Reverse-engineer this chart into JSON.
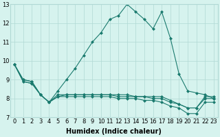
{
  "xlabel": "Humidex (Indice chaleur)",
  "bg_color": "#d6f3ee",
  "grid_color": "#b0d8d4",
  "line_color": "#1a7a6e",
  "marker": "D",
  "marker_size": 2,
  "xmin": -0.5,
  "xmax": 23.5,
  "ymin": 7,
  "ymax": 13,
  "series1": [
    9.8,
    9.0,
    8.9,
    8.2,
    7.8,
    8.4,
    9.0,
    9.6,
    10.3,
    11.0,
    11.5,
    12.2,
    12.4,
    13.0,
    12.6,
    12.2,
    11.7,
    12.6,
    11.2,
    9.3,
    8.4,
    8.3,
    8.2,
    8.0
  ],
  "series2": [
    9.8,
    9.0,
    8.9,
    8.2,
    7.8,
    8.2,
    8.2,
    8.2,
    8.2,
    8.2,
    8.2,
    8.2,
    8.1,
    8.1,
    8.1,
    8.1,
    8.0,
    8.0,
    7.8,
    7.7,
    7.5,
    7.5,
    8.0,
    8.0
  ],
  "series3": [
    9.8,
    8.9,
    8.8,
    8.2,
    7.8,
    8.1,
    8.1,
    8.1,
    8.1,
    8.1,
    8.1,
    8.1,
    8.0,
    8.0,
    8.0,
    7.9,
    7.9,
    7.8,
    7.6,
    7.5,
    7.2,
    7.2,
    7.8,
    7.8
  ],
  "series4": [
    9.8,
    8.9,
    8.8,
    8.2,
    7.8,
    8.1,
    8.2,
    8.2,
    8.2,
    8.2,
    8.2,
    8.2,
    8.2,
    8.2,
    8.1,
    8.1,
    8.1,
    8.1,
    7.9,
    7.7,
    7.5,
    7.5,
    8.1,
    8.1
  ],
  "xtick_labels": [
    "0",
    "1",
    "2",
    "3",
    "4",
    "5",
    "6",
    "7",
    "8",
    "9",
    "10",
    "11",
    "12",
    "13",
    "14",
    "15",
    "16",
    "17",
    "18",
    "19",
    "20",
    "21",
    "22",
    "23"
  ],
  "ytick_labels": [
    "7",
    "8",
    "9",
    "10",
    "11",
    "12",
    "13"
  ],
  "xlabel_fontsize": 7,
  "tick_fontsize": 6,
  "linewidth": 0.8
}
